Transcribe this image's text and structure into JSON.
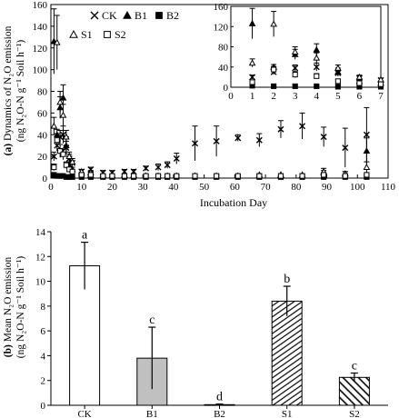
{
  "chart_data": [
    {
      "type": "scatter",
      "panel_label": "(a)",
      "ylabel_line1": "Dynamics of N₂O emission",
      "ylabel_line2": "(ng N₂O-N g⁻¹ Soil h⁻¹)",
      "xlabel": "Incubation Day",
      "xlim": [
        0,
        110
      ],
      "ylim": [
        0,
        160
      ],
      "xticks": [
        0,
        10,
        20,
        30,
        40,
        50,
        60,
        70,
        80,
        90,
        100,
        110
      ],
      "yticks": [
        0,
        20,
        40,
        60,
        80,
        100,
        120,
        140,
        160
      ],
      "legend_placement": "top-left",
      "series": [
        {
          "name": "CK",
          "marker": "x",
          "points": [
            [
              1,
              20,
              4
            ],
            [
              2,
              30,
              5
            ],
            [
              3,
              38,
              6
            ],
            [
              4,
              40,
              8
            ],
            [
              5,
              28,
              6
            ],
            [
              6,
              18,
              4
            ],
            [
              7,
              14,
              4
            ],
            [
              10,
              6,
              2
            ],
            [
              13,
              8,
              2
            ],
            [
              17,
              5,
              2
            ],
            [
              20,
              5,
              2
            ],
            [
              24,
              6,
              2
            ],
            [
              27,
              6,
              2
            ],
            [
              31,
              9,
              2
            ],
            [
              35,
              10,
              3
            ],
            [
              38,
              12,
              3
            ],
            [
              41,
              18,
              5
            ],
            [
              47,
              32,
              16
            ],
            [
              54,
              34,
              14
            ],
            [
              61,
              37,
              3
            ],
            [
              68,
              35,
              6
            ],
            [
              75,
              45,
              8
            ],
            [
              82,
              48,
              12
            ],
            [
              89,
              38,
              9
            ],
            [
              96,
              28,
              18
            ],
            [
              103,
              40,
              25
            ]
          ]
        },
        {
          "name": "B1",
          "marker": "triangle-filled",
          "points": [
            [
              1,
              126,
              30
            ],
            [
              2,
              40,
              5
            ],
            [
              3,
              65,
              10
            ],
            [
              4,
              74,
              12
            ],
            [
              5,
              30,
              8
            ],
            [
              6,
              12,
              3
            ],
            [
              7,
              8,
              2
            ],
            [
              10,
              4,
              1
            ],
            [
              13,
              3,
              1
            ],
            [
              17,
              2,
              1
            ],
            [
              20,
              2,
              1
            ],
            [
              24,
              2,
              1
            ],
            [
              27,
              2,
              1
            ],
            [
              31,
              2,
              1
            ],
            [
              35,
              2,
              1
            ],
            [
              38,
              2,
              1
            ],
            [
              41,
              2,
              1
            ],
            [
              47,
              2,
              1
            ],
            [
              54,
              2,
              1
            ],
            [
              61,
              2,
              1
            ],
            [
              68,
              2,
              1
            ],
            [
              75,
              3,
              1
            ],
            [
              82,
              2,
              1
            ],
            [
              89,
              5,
              2
            ],
            [
              96,
              4,
              2
            ],
            [
              103,
              25,
              12
            ]
          ]
        },
        {
          "name": "B2",
          "marker": "square-filled",
          "points": [
            [
              1,
              3,
              1
            ],
            [
              2,
              2,
              1
            ],
            [
              3,
              2,
              1
            ],
            [
              4,
              2,
              1
            ],
            [
              5,
              1,
              1
            ],
            [
              6,
              1,
              1
            ],
            [
              7,
              1,
              1
            ],
            [
              10,
              1,
              0
            ],
            [
              13,
              1,
              0
            ],
            [
              17,
              1,
              0
            ],
            [
              20,
              1,
              0
            ],
            [
              24,
              1,
              0
            ],
            [
              27,
              1,
              0
            ],
            [
              31,
              1,
              0
            ],
            [
              35,
              1,
              0
            ],
            [
              38,
              1,
              0
            ],
            [
              41,
              1,
              0
            ],
            [
              47,
              1,
              0
            ],
            [
              54,
              1,
              0
            ],
            [
              61,
              1,
              0
            ],
            [
              68,
              1,
              0
            ],
            [
              75,
              1,
              0
            ],
            [
              82,
              1,
              0
            ],
            [
              89,
              1,
              0
            ],
            [
              96,
              1,
              0
            ],
            [
              103,
              1,
              0
            ]
          ]
        },
        {
          "name": "S1",
          "marker": "triangle-open",
          "points": [
            [
              1,
              48,
              8
            ],
            [
              2,
              125,
              25
            ],
            [
              3,
              70,
              10
            ],
            [
              4,
              58,
              10
            ],
            [
              5,
              38,
              6
            ],
            [
              6,
              20,
              4
            ],
            [
              7,
              15,
              3
            ],
            [
              10,
              6,
              2
            ],
            [
              13,
              5,
              2
            ],
            [
              17,
              3,
              1
            ],
            [
              20,
              3,
              1
            ],
            [
              24,
              3,
              1
            ],
            [
              27,
              3,
              1
            ],
            [
              31,
              2,
              1
            ],
            [
              35,
              2,
              1
            ],
            [
              38,
              2,
              1
            ],
            [
              41,
              2,
              1
            ],
            [
              47,
              2,
              1
            ],
            [
              54,
              2,
              1
            ],
            [
              61,
              2,
              1
            ],
            [
              68,
              3,
              1
            ],
            [
              75,
              3,
              1
            ],
            [
              82,
              3,
              1
            ],
            [
              89,
              6,
              3
            ],
            [
              96,
              4,
              2
            ],
            [
              103,
              10,
              5
            ]
          ]
        },
        {
          "name": "S2",
          "marker": "square-open",
          "points": [
            [
              1,
              10,
              3
            ],
            [
              2,
              35,
              6
            ],
            [
              3,
              25,
              6
            ],
            [
              4,
              22,
              5
            ],
            [
              5,
              12,
              3
            ],
            [
              6,
              8,
              2
            ],
            [
              7,
              6,
              2
            ],
            [
              10,
              3,
              1
            ],
            [
              13,
              3,
              1
            ],
            [
              17,
              2,
              1
            ],
            [
              20,
              2,
              1
            ],
            [
              24,
              2,
              1
            ],
            [
              27,
              2,
              1
            ],
            [
              31,
              2,
              1
            ],
            [
              35,
              2,
              1
            ],
            [
              38,
              2,
              1
            ],
            [
              41,
              2,
              1
            ],
            [
              47,
              2,
              1
            ],
            [
              54,
              2,
              1
            ],
            [
              61,
              2,
              1
            ],
            [
              68,
              2,
              1
            ],
            [
              75,
              2,
              1
            ],
            [
              82,
              2,
              1
            ],
            [
              89,
              3,
              1
            ],
            [
              96,
              2,
              1
            ],
            [
              103,
              3,
              1
            ]
          ]
        }
      ],
      "inset": {
        "xlim": [
          0,
          7
        ],
        "ylim": [
          0,
          160
        ],
        "xticks": [
          0,
          1,
          2,
          3,
          4,
          5,
          6,
          7
        ],
        "yticks": [
          0,
          40,
          80,
          120,
          160
        ]
      }
    },
    {
      "type": "bar",
      "panel_label": "(b)",
      "ylabel_line1": "Mean N₂O emission",
      "ylabel_line2": "(ng N₂O-N g⁻¹ Soil h⁻¹)",
      "categories": [
        "CK",
        "B1",
        "B2",
        "S1",
        "S2"
      ],
      "values": [
        11.25,
        3.8,
        0.05,
        8.4,
        2.25
      ],
      "errors": [
        1.9,
        2.5,
        0.05,
        1.2,
        0.35
      ],
      "letters": [
        "a",
        "c",
        "d",
        "b",
        "c"
      ],
      "fills": [
        "#ffffff",
        "#c0c0c0",
        "#000000",
        "hatch-narrow",
        "hatch-wide"
      ],
      "ylim": [
        0,
        14
      ],
      "yticks": [
        0,
        2,
        4,
        6,
        8,
        10,
        12,
        14
      ]
    }
  ]
}
